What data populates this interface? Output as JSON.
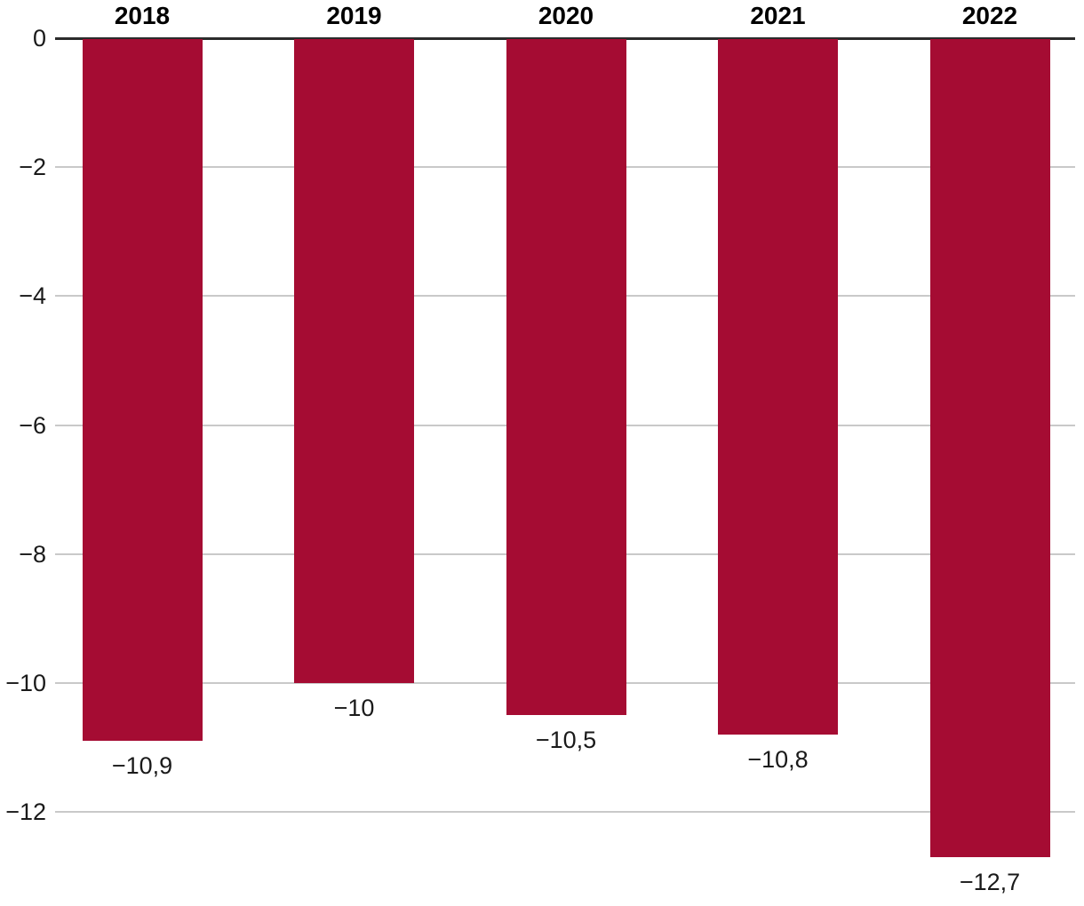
{
  "chart_data": {
    "type": "bar",
    "title": "",
    "xlabel": "",
    "ylabel": "",
    "categories": [
      "2018",
      "2019",
      "2020",
      "2021",
      "2022"
    ],
    "values": [
      -10.9,
      -10,
      -10.5,
      -10.8,
      -12.7
    ],
    "value_labels": [
      "−10,9",
      "−10",
      "−10,5",
      "−10,8",
      "−12,7"
    ],
    "y_ticks": [
      0,
      -2,
      -4,
      -6,
      -8,
      -10,
      -12
    ],
    "y_tick_labels": [
      "0",
      "−2",
      "−4",
      "−6",
      "−8",
      "−10",
      "−12"
    ],
    "ylim": [
      -13.5,
      0
    ],
    "grid": true,
    "legend": "none",
    "decimal_separator": ",",
    "colors": {
      "bar": "#A50C33",
      "gridline": "#C9C9C9",
      "zero_line": "#2B2B2B",
      "text": "#1A1A1A",
      "category_text": "#000000"
    }
  }
}
